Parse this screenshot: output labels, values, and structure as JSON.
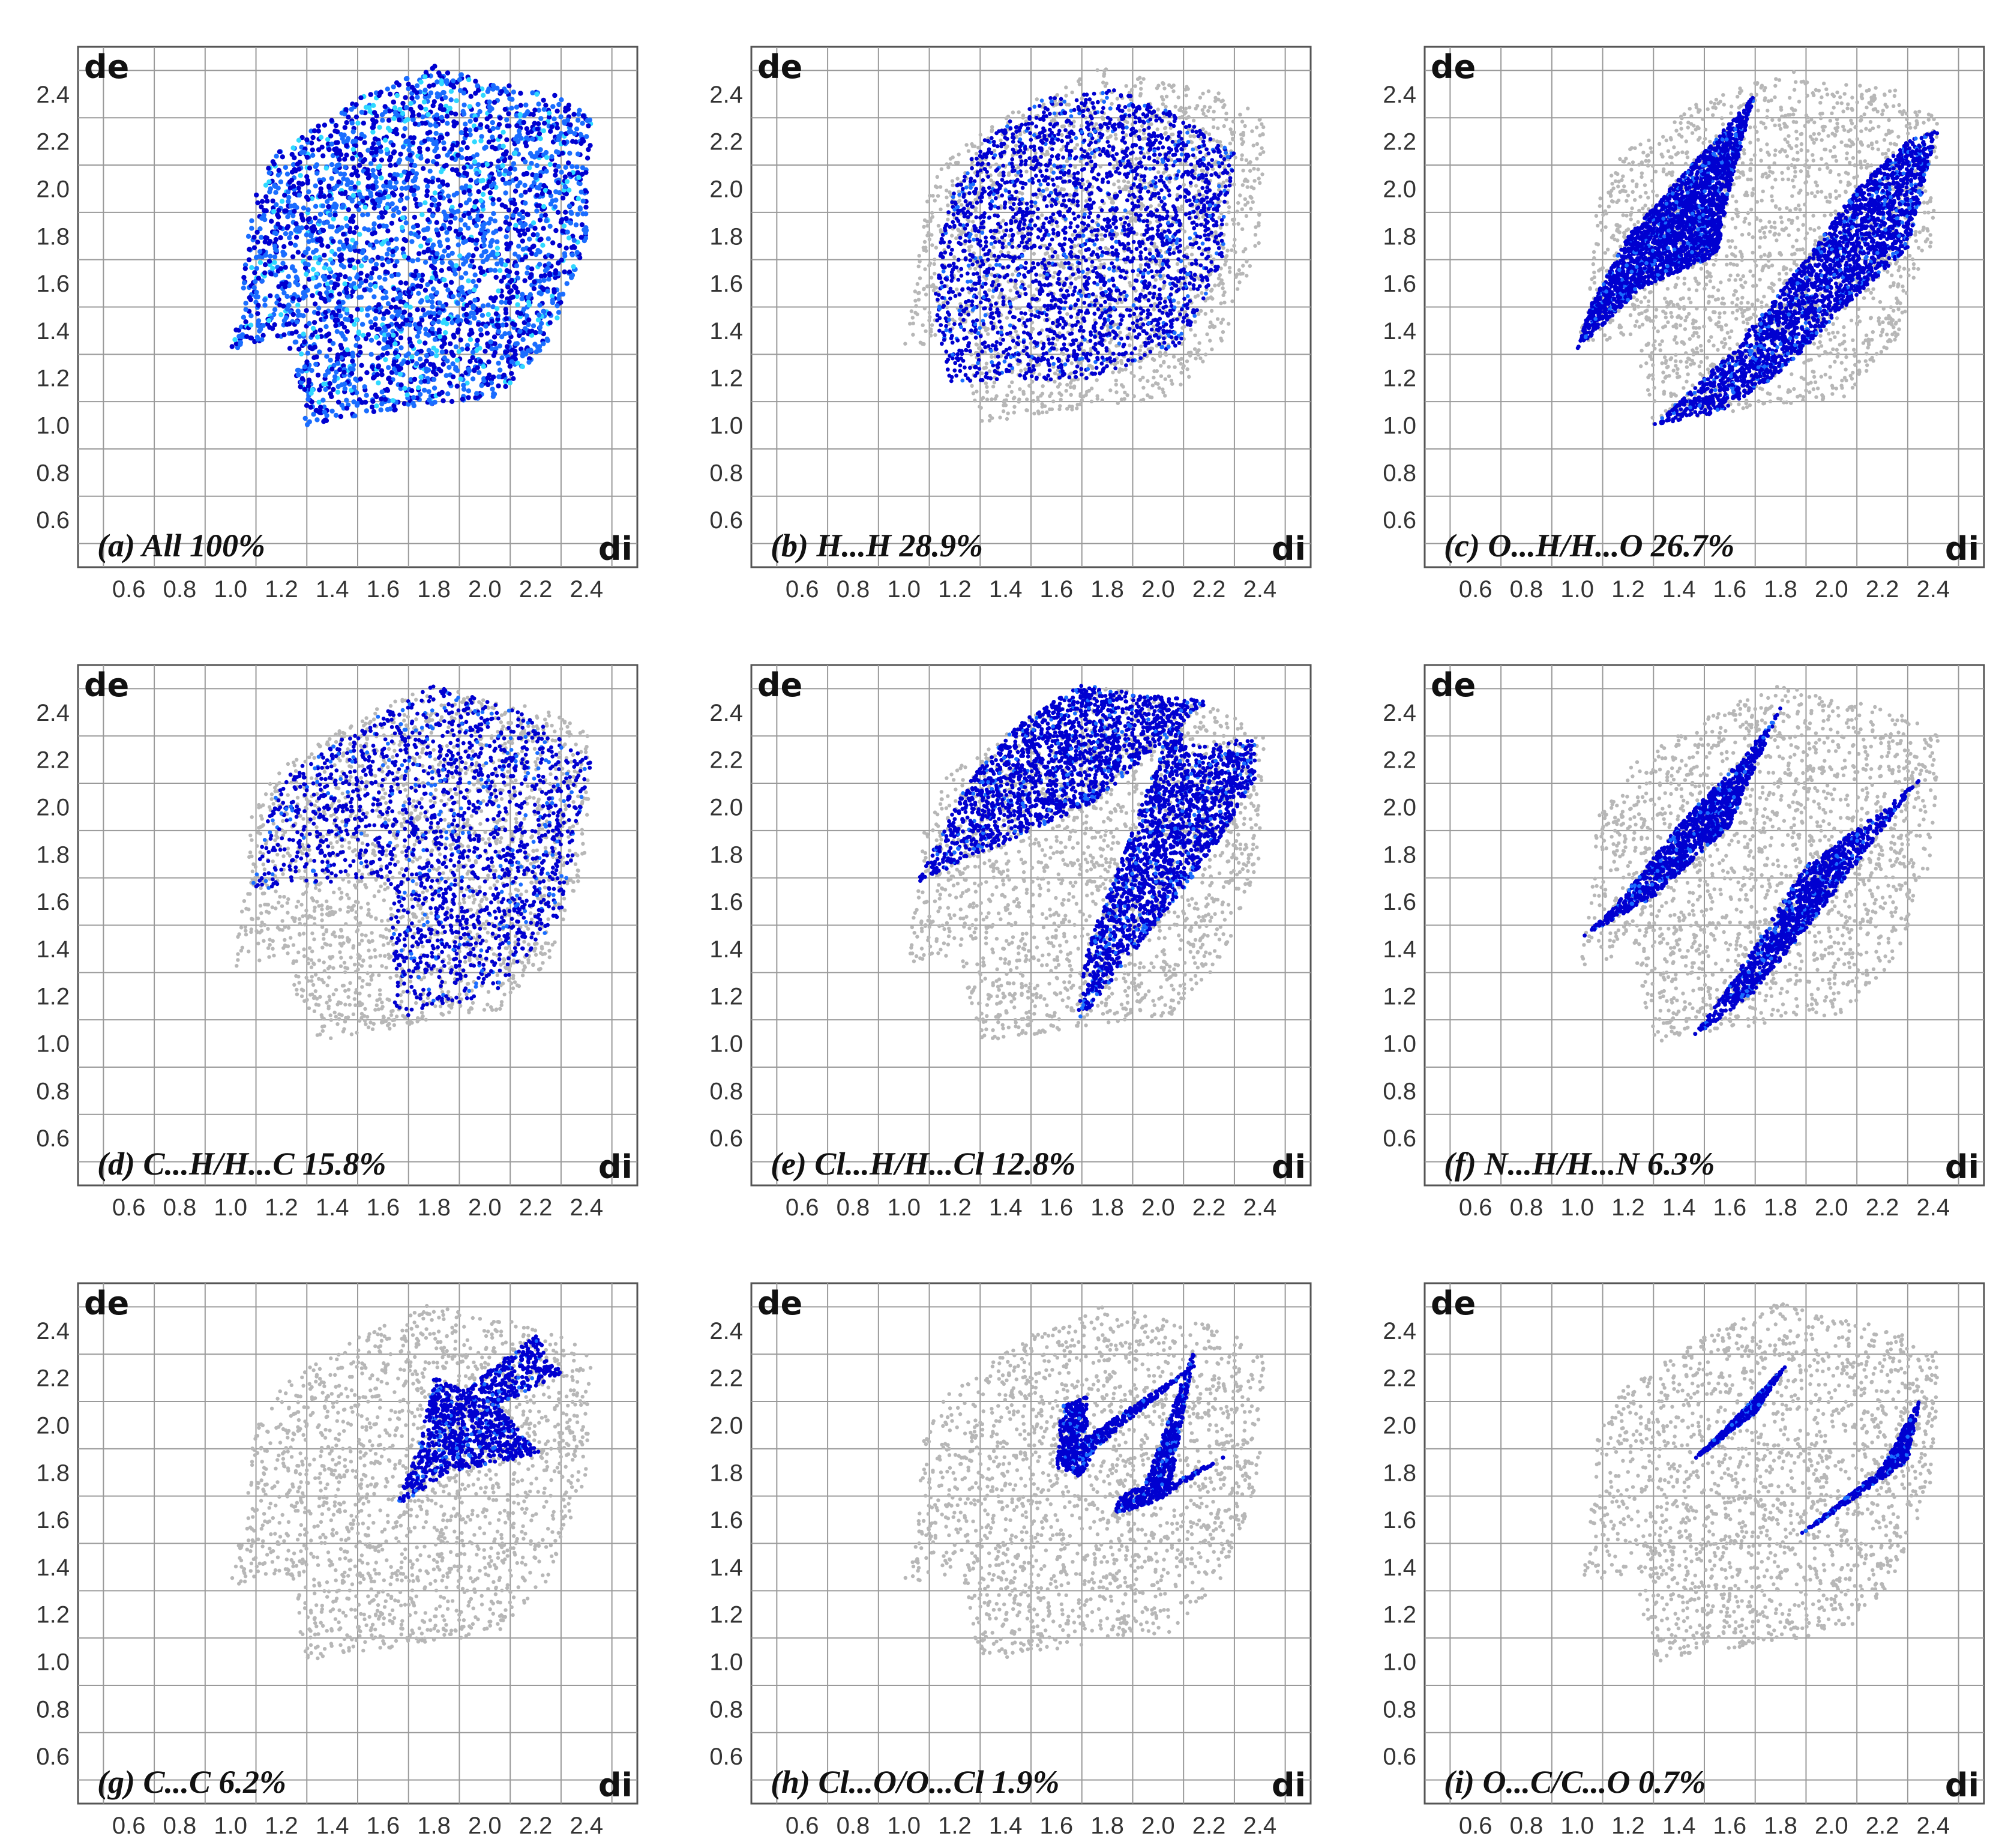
{
  "colors": {
    "background_points": "#b7b7b7",
    "highlight_low": "#0000d0",
    "highlight_mid": "#1a6dff",
    "highlight_high": "#2fd8ff",
    "grid": "#9a9a9a"
  },
  "chart_data": [
    {
      "type": "scatter",
      "panel": "a",
      "label": "(a) All 100%",
      "xlabel": "di",
      "ylabel": "de",
      "xlim": [
        0.4,
        2.6
      ],
      "ylim": [
        0.4,
        2.6
      ],
      "xticks": [
        "0.6",
        "0.8",
        "1.0",
        "1.2",
        "1.4",
        "1.6",
        "1.8",
        "2.0",
        "2.2",
        "2.4"
      ],
      "yticks": [
        "2.4",
        "2.2",
        "2.0",
        "1.8",
        "1.6",
        "1.4",
        "1.2",
        "1.0",
        "0.8",
        "0.6"
      ],
      "grid": true,
      "series": [
        {
          "contact": "All",
          "percent": 100,
          "region": [
            [
              1.0,
              1.32
            ],
            [
              1.22,
              1.38
            ],
            [
              1.3,
              1.0
            ],
            [
              1.75,
              1.08
            ],
            [
              2.05,
              1.12
            ],
            [
              2.25,
              1.35
            ],
            [
              2.4,
              1.78
            ],
            [
              2.42,
              2.3
            ],
            [
              2.25,
              2.42
            ],
            [
              2.0,
              2.45
            ],
            [
              1.8,
              2.52
            ],
            [
              1.5,
              2.38
            ],
            [
              1.18,
              2.15
            ],
            [
              1.08,
              1.95
            ],
            [
              1.05,
              1.6
            ]
          ]
        }
      ]
    },
    {
      "type": "scatter",
      "panel": "b",
      "label": "(b) H...H 28.9%",
      "xlabel": "di",
      "ylabel": "de",
      "xlim": [
        0.4,
        2.6
      ],
      "ylim": [
        0.4,
        2.6
      ],
      "xticks": [
        "0.6",
        "0.8",
        "1.0",
        "1.2",
        "1.4",
        "1.6",
        "1.8",
        "2.0",
        "2.2",
        "2.4"
      ],
      "yticks": [
        "2.4",
        "2.2",
        "2.0",
        "1.8",
        "1.6",
        "1.4",
        "1.2",
        "1.0",
        "0.8",
        "0.6"
      ],
      "grid": true,
      "series": [
        {
          "contact": "H...H",
          "percent": 28.9,
          "region": [
            [
              1.18,
              1.18
            ],
            [
              1.75,
              1.2
            ],
            [
              2.1,
              1.35
            ],
            [
              2.25,
              1.7
            ],
            [
              2.3,
              2.15
            ],
            [
              2.1,
              2.3
            ],
            [
              1.85,
              2.42
            ],
            [
              1.55,
              2.38
            ],
            [
              1.3,
              2.2
            ],
            [
              1.15,
              1.9
            ],
            [
              1.12,
              1.5
            ]
          ]
        }
      ]
    },
    {
      "type": "scatter",
      "panel": "c",
      "label": "(c) O...H/H...O 26.7%",
      "xlabel": "di",
      "ylabel": "de",
      "xlim": [
        0.4,
        2.6
      ],
      "ylim": [
        0.4,
        2.6
      ],
      "xticks": [
        "0.6",
        "0.8",
        "1.0",
        "1.2",
        "1.4",
        "1.6",
        "1.8",
        "2.0",
        "2.2",
        "2.4"
      ],
      "yticks": [
        "2.4",
        "2.2",
        "2.0",
        "1.8",
        "1.6",
        "1.4",
        "1.2",
        "1.0",
        "0.8",
        "0.6"
      ],
      "grid": true,
      "series": [
        {
          "contact": "O...H",
          "percent": 26.7,
          "region": [
            [
              1.0,
              1.32
            ],
            [
              1.25,
              1.58
            ],
            [
              1.55,
              1.72
            ],
            [
              1.6,
              2.0
            ],
            [
              1.7,
              2.4
            ],
            [
              1.78,
              2.5
            ],
            [
              1.62,
              2.3
            ],
            [
              1.45,
              2.1
            ],
            [
              1.2,
              1.8
            ],
            [
              1.05,
              1.5
            ]
          ]
        },
        {
          "contact": "H...O",
          "percent": 26.7,
          "region": [
            [
              1.3,
              1.0
            ],
            [
              1.55,
              1.05
            ],
            [
              1.8,
              1.22
            ],
            [
              2.05,
              1.5
            ],
            [
              2.3,
              1.75
            ],
            [
              2.42,
              2.25
            ],
            [
              2.3,
              2.2
            ],
            [
              2.1,
              2.0
            ],
            [
              1.9,
              1.7
            ],
            [
              1.6,
              1.3
            ]
          ]
        }
      ]
    },
    {
      "type": "scatter",
      "panel": "d",
      "label": "(d) C...H/H...C 15.8%",
      "xlabel": "di",
      "ylabel": "de",
      "xlim": [
        0.4,
        2.6
      ],
      "ylim": [
        0.4,
        2.6
      ],
      "xticks": [
        "0.6",
        "0.8",
        "1.0",
        "1.2",
        "1.4",
        "1.6",
        "1.8",
        "2.0",
        "2.2",
        "2.4"
      ],
      "yticks": [
        "2.4",
        "2.2",
        "2.0",
        "1.8",
        "1.6",
        "1.4",
        "1.2",
        "1.0",
        "0.8",
        "0.6"
      ],
      "grid": true,
      "series": [
        {
          "contact": "C...H",
          "percent": 15.8,
          "region": [
            [
              1.08,
              1.65
            ],
            [
              1.62,
              1.7
            ],
            [
              1.65,
              1.1
            ],
            [
              2.05,
              1.22
            ],
            [
              2.3,
              1.55
            ],
            [
              2.42,
              2.2
            ],
            [
              2.15,
              2.4
            ],
            [
              1.8,
              2.52
            ],
            [
              1.45,
              2.3
            ],
            [
              1.18,
              2.1
            ]
          ]
        }
      ]
    },
    {
      "type": "scatter",
      "panel": "e",
      "label": "(e) Cl...H/H...Cl 12.8%",
      "xlabel": "di",
      "ylabel": "de",
      "xlim": [
        0.4,
        2.6
      ],
      "ylim": [
        0.4,
        2.6
      ],
      "xticks": [
        "0.6",
        "0.8",
        "1.0",
        "1.2",
        "1.4",
        "1.6",
        "1.8",
        "2.0",
        "2.2",
        "2.4"
      ],
      "yticks": [
        "2.4",
        "2.2",
        "2.0",
        "1.8",
        "1.6",
        "1.4",
        "1.2",
        "1.0",
        "0.8",
        "0.6"
      ],
      "grid": true,
      "series": [
        {
          "contact": "Cl...H",
          "percent": 12.8,
          "region": [
            [
              1.05,
              1.68
            ],
            [
              1.4,
              1.85
            ],
            [
              1.75,
              2.02
            ],
            [
              2.2,
              2.45
            ],
            [
              1.9,
              2.48
            ],
            [
              1.7,
              2.52
            ],
            [
              1.45,
              2.35
            ],
            [
              1.25,
              2.1
            ]
          ]
        },
        {
          "contact": "H...Cl",
          "percent": 12.8,
          "region": [
            [
              1.68,
              1.08
            ],
            [
              1.95,
              1.45
            ],
            [
              2.22,
              1.82
            ],
            [
              2.38,
              2.12
            ],
            [
              2.38,
              2.3
            ],
            [
              2.15,
              2.25
            ],
            [
              2.05,
              2.35
            ],
            [
              1.9,
              1.9
            ],
            [
              1.72,
              1.4
            ]
          ]
        }
      ]
    },
    {
      "type": "scatter",
      "panel": "f",
      "label": "(f) N...H/H...N 6.3%",
      "xlabel": "di",
      "ylabel": "de",
      "xlim": [
        0.4,
        2.6
      ],
      "ylim": [
        0.4,
        2.6
      ],
      "xticks": [
        "0.6",
        "0.8",
        "1.0",
        "1.2",
        "1.4",
        "1.6",
        "1.8",
        "2.0",
        "2.2",
        "2.4"
      ],
      "yticks": [
        "2.4",
        "2.2",
        "2.0",
        "1.8",
        "1.6",
        "1.4",
        "1.2",
        "1.0",
        "0.8",
        "0.6"
      ],
      "grid": true,
      "series": [
        {
          "contact": "N...H",
          "percent": 6.3,
          "region": [
            [
              1.02,
              1.45
            ],
            [
              1.3,
              1.62
            ],
            [
              1.6,
              1.92
            ],
            [
              1.8,
              2.42
            ],
            [
              1.65,
              2.2
            ],
            [
              1.42,
              1.95
            ],
            [
              1.15,
              1.58
            ]
          ]
        },
        {
          "contact": "H...N",
          "percent": 6.3,
          "region": [
            [
              1.45,
              1.02
            ],
            [
              1.7,
              1.22
            ],
            [
              2.0,
              1.62
            ],
            [
              2.35,
              2.12
            ],
            [
              2.22,
              2.0
            ],
            [
              1.9,
              1.75
            ],
            [
              1.6,
              1.25
            ]
          ]
        }
      ]
    },
    {
      "type": "scatter",
      "panel": "g",
      "label": "(g) C...C 6.2%",
      "xlabel": "di",
      "ylabel": "de",
      "xlim": [
        0.4,
        2.6
      ],
      "ylim": [
        0.4,
        2.6
      ],
      "xticks": [
        "0.6",
        "0.8",
        "1.0",
        "1.2",
        "1.4",
        "1.6",
        "1.8",
        "2.0",
        "2.2",
        "2.4"
      ],
      "yticks": [
        "2.4",
        "2.2",
        "2.0",
        "1.8",
        "1.6",
        "1.4",
        "1.2",
        "1.0",
        "0.8",
        "0.6"
      ],
      "grid": true,
      "series": [
        {
          "contact": "C...C",
          "percent": 6.2,
          "region": [
            [
              1.65,
              1.65
            ],
            [
              1.85,
              1.8
            ],
            [
              2.22,
              1.88
            ],
            [
              2.05,
              2.08
            ],
            [
              2.3,
              2.22
            ],
            [
              2.2,
              2.38
            ],
            [
              1.92,
              2.15
            ],
            [
              1.8,
              2.2
            ],
            [
              1.75,
              1.95
            ]
          ]
        }
      ]
    },
    {
      "type": "scatter",
      "panel": "h",
      "label": "(h) Cl...O/O...Cl 1.9%",
      "xlabel": "di",
      "ylabel": "de",
      "xlim": [
        0.4,
        2.6
      ],
      "ylim": [
        0.4,
        2.6
      ],
      "xticks": [
        "0.6",
        "0.8",
        "1.0",
        "1.2",
        "1.4",
        "1.6",
        "1.8",
        "2.0",
        "2.2",
        "2.4"
      ],
      "yticks": [
        "2.4",
        "2.2",
        "2.0",
        "1.8",
        "1.6",
        "1.4",
        "1.2",
        "1.0",
        "0.8",
        "0.6"
      ],
      "grid": true,
      "series": [
        {
          "contact": "Cl...O",
          "percent": 1.9,
          "region": [
            [
              1.6,
              1.82
            ],
            [
              1.62,
              2.08
            ],
            [
              1.72,
              2.12
            ],
            [
              1.72,
              1.95
            ],
            [
              2.18,
              2.28
            ],
            [
              1.75,
              1.9
            ],
            [
              1.7,
              1.78
            ]
          ]
        },
        {
          "contact": "O...Cl",
          "percent": 1.9,
          "region": [
            [
              1.82,
              1.62
            ],
            [
              2.0,
              1.68
            ],
            [
              2.28,
              1.88
            ],
            [
              2.05,
              1.75
            ],
            [
              2.15,
              2.35
            ],
            [
              1.95,
              1.75
            ],
            [
              1.85,
              1.7
            ]
          ]
        }
      ]
    },
    {
      "type": "scatter",
      "panel": "i",
      "label": "(i) O...C/C...O 0.7%",
      "xlabel": "di",
      "ylabel": "de",
      "xlim": [
        0.4,
        2.6
      ],
      "ylim": [
        0.4,
        2.6
      ],
      "xticks": [
        "0.6",
        "0.8",
        "1.0",
        "1.2",
        "1.4",
        "1.6",
        "1.8",
        "2.0",
        "2.2",
        "2.4"
      ],
      "yticks": [
        "2.4",
        "2.2",
        "2.0",
        "1.8",
        "1.6",
        "1.4",
        "1.2",
        "1.0",
        "0.8",
        "0.6"
      ],
      "grid": true,
      "series": [
        {
          "contact": "O...C",
          "percent": 0.7,
          "region": [
            [
              1.45,
              1.85
            ],
            [
              1.55,
              1.95
            ],
            [
              1.82,
              2.25
            ],
            [
              1.7,
              2.05
            ],
            [
              1.52,
              1.9
            ]
          ]
        },
        {
          "contact": "C...O",
          "percent": 0.7,
          "region": [
            [
              1.85,
              1.52
            ],
            [
              2.0,
              1.62
            ],
            [
              2.3,
              1.85
            ],
            [
              2.35,
              2.12
            ],
            [
              2.2,
              1.82
            ],
            [
              1.95,
              1.6
            ]
          ]
        }
      ]
    }
  ]
}
